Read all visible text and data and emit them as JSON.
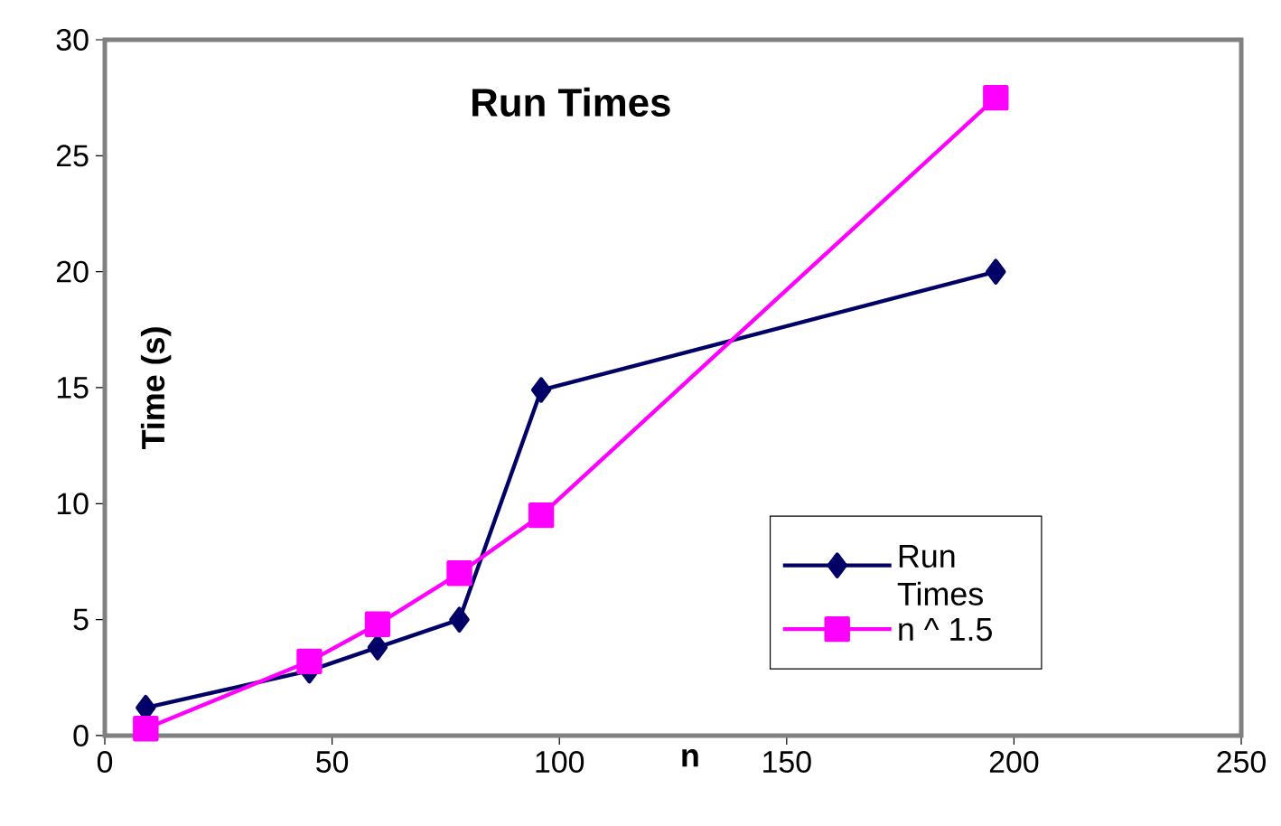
{
  "chart_data": {
    "type": "line",
    "title": "Run Times",
    "xlabel": "n",
    "ylabel": "Time (s)",
    "x": [
      9,
      45,
      60,
      78,
      96,
      196
    ],
    "series": [
      {
        "name": "Run Times",
        "color": "#000066",
        "marker": "diamond",
        "values": [
          1.2,
          2.8,
          3.8,
          5,
          14.9,
          20
        ]
      },
      {
        "name": "n ^ 1.5",
        "color": "#ff00ff",
        "marker": "square",
        "values": [
          0.3,
          3.2,
          4.8,
          7,
          9.5,
          27.5
        ]
      }
    ],
    "xlim": [
      0,
      250
    ],
    "ylim": [
      0,
      30
    ],
    "xticks": [
      0,
      50,
      100,
      150,
      200,
      250
    ],
    "yticks": [
      0,
      5,
      10,
      15,
      20,
      25,
      30
    ],
    "grid": false,
    "legend": "right",
    "line_style": "solid"
  }
}
